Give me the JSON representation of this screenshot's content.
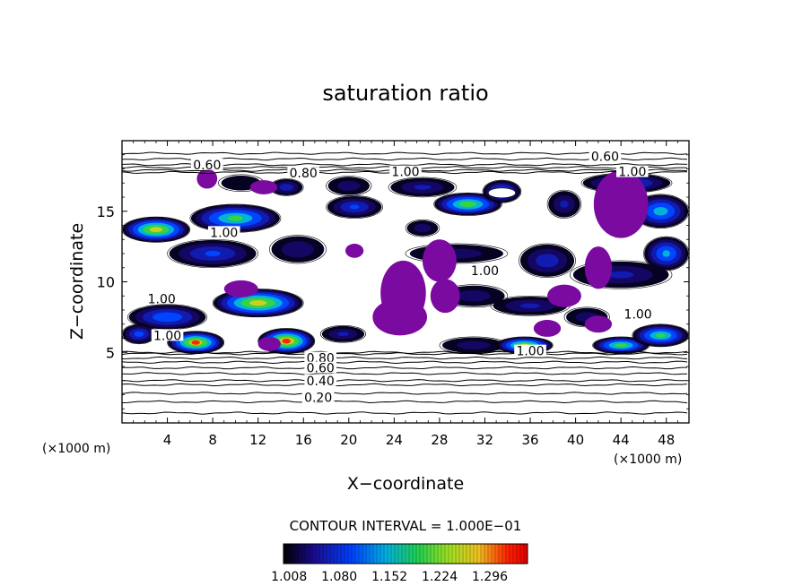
{
  "chart_data": {
    "type": "contour",
    "title": "saturation ratio",
    "xlabel": "X−coordinate",
    "ylabel": "Z−coordinate",
    "x_unit_left": "(×1000 m)",
    "x_unit_right": "(×1000 m)",
    "xlim": [
      0,
      50
    ],
    "ylim": [
      0,
      20
    ],
    "xticks": [
      "4",
      "8",
      "12",
      "16",
      "20",
      "24",
      "28",
      "32",
      "36",
      "40",
      "44",
      "48"
    ],
    "yticks": [
      "5",
      "10",
      "15"
    ],
    "contour_interval_text": "CONTOUR INTERVAL = 1.000E−01",
    "contour_levels_labeled": [
      "0.20",
      "0.40",
      "0.60",
      "0.80",
      "1.00"
    ],
    "colorbar_ticks": [
      "1.008",
      "1.080",
      "1.152",
      "1.224",
      "1.296"
    ],
    "colorbar_range": [
      1.0,
      1.35
    ],
    "inline_labels": [
      {
        "text": "0.60",
        "x": 42.6,
        "y": 18.9
      },
      {
        "text": "0.60",
        "x": 7.5,
        "y": 18.3
      },
      {
        "text": "0.80",
        "x": 16.0,
        "y": 17.7
      },
      {
        "text": "1.00",
        "x": 25.0,
        "y": 17.8
      },
      {
        "text": "1.00",
        "x": 45.0,
        "y": 17.8
      },
      {
        "text": "1.00",
        "x": 9.0,
        "y": 13.5
      },
      {
        "text": "1.00",
        "x": 32.0,
        "y": 10.8
      },
      {
        "text": "1.00",
        "x": 3.5,
        "y": 8.8
      },
      {
        "text": "1.00",
        "x": 4.0,
        "y": 6.2
      },
      {
        "text": "1.00",
        "x": 45.5,
        "y": 7.7
      },
      {
        "text": "1.00",
        "x": 36.0,
        "y": 5.1
      },
      {
        "text": "0.80",
        "x": 17.5,
        "y": 4.6
      },
      {
        "text": "0.60",
        "x": 17.5,
        "y": 3.9
      },
      {
        "text": "0.40",
        "x": 17.5,
        "y": 3.0
      },
      {
        "text": "0.20",
        "x": 17.3,
        "y": 1.8
      }
    ],
    "horizontal_contours_z": [
      0.7,
      1.5,
      2.1,
      2.7,
      3.0,
      3.5,
      3.9,
      4.3,
      4.6,
      4.9,
      5.0,
      17.75,
      17.9,
      18.1,
      18.3,
      18.7,
      19.1
    ],
    "regions": [
      {
        "kind": "supersat",
        "cx": 3.0,
        "cz": 13.7,
        "rx": 3.0,
        "rz": 0.9,
        "peak": 1.3
      },
      {
        "kind": "supersat",
        "cx": 10.0,
        "cz": 14.5,
        "rx": 4.0,
        "rz": 1.0,
        "peak": 1.22
      },
      {
        "kind": "supersat",
        "cx": 8.0,
        "cz": 12.0,
        "rx": 4.0,
        "rz": 1.0,
        "peak": 1.1
      },
      {
        "kind": "supersat",
        "cx": 15.5,
        "cz": 12.3,
        "rx": 2.5,
        "rz": 1.0,
        "peak": 1.05
      },
      {
        "kind": "supersat",
        "cx": 12.0,
        "cz": 8.5,
        "rx": 4.0,
        "rz": 1.0,
        "peak": 1.3
      },
      {
        "kind": "supersat",
        "cx": 4.0,
        "cz": 7.5,
        "rx": 3.5,
        "rz": 0.9,
        "peak": 1.14
      },
      {
        "kind": "supersat",
        "cx": 6.5,
        "cz": 5.7,
        "rx": 2.5,
        "rz": 0.8,
        "peak": 1.32
      },
      {
        "kind": "supersat",
        "cx": 14.5,
        "cz": 5.8,
        "rx": 2.5,
        "rz": 0.9,
        "peak": 1.34
      },
      {
        "kind": "supersat",
        "cx": 1.5,
        "cz": 6.3,
        "rx": 1.5,
        "rz": 0.7,
        "peak": 1.12
      },
      {
        "kind": "supersat",
        "cx": 10.5,
        "cz": 17.0,
        "rx": 2.0,
        "rz": 0.6,
        "peak": 1.02
      },
      {
        "kind": "supersat",
        "cx": 14.5,
        "cz": 16.7,
        "rx": 1.5,
        "rz": 0.6,
        "peak": 1.08
      },
      {
        "kind": "supersat",
        "cx": 20.0,
        "cz": 16.8,
        "rx": 2.0,
        "rz": 0.7,
        "peak": 1.04
      },
      {
        "kind": "supersat",
        "cx": 20.5,
        "cz": 15.3,
        "rx": 2.5,
        "rz": 0.8,
        "peak": 1.1
      },
      {
        "kind": "supersat",
        "cx": 26.5,
        "cz": 16.7,
        "rx": 3.0,
        "rz": 0.7,
        "peak": 1.06
      },
      {
        "kind": "supersat",
        "cx": 30.5,
        "cz": 15.5,
        "rx": 3.0,
        "rz": 0.8,
        "peak": 1.25
      },
      {
        "kind": "supersat",
        "cx": 33.5,
        "cz": 16.4,
        "rx": 1.7,
        "rz": 0.8,
        "peak": 1.15
      },
      {
        "kind": "supersat",
        "cx": 26.5,
        "cz": 13.8,
        "rx": 1.5,
        "rz": 0.6,
        "peak": 1.04
      },
      {
        "kind": "supersat",
        "cx": 39.0,
        "cz": 15.5,
        "rx": 1.5,
        "rz": 1.0,
        "peak": 1.06
      },
      {
        "kind": "supersat",
        "cx": 44.5,
        "cz": 17.0,
        "rx": 4.0,
        "rz": 0.7,
        "peak": 1.12
      },
      {
        "kind": "supersat",
        "cx": 47.5,
        "cz": 15.0,
        "rx": 2.5,
        "rz": 1.2,
        "peak": 1.18
      },
      {
        "kind": "supersat",
        "cx": 48.0,
        "cz": 12.0,
        "rx": 2.0,
        "rz": 1.2,
        "peak": 1.16
      },
      {
        "kind": "supersat",
        "cx": 29.5,
        "cz": 12.0,
        "rx": 4.5,
        "rz": 0.7,
        "peak": 1.04
      },
      {
        "kind": "supersat",
        "cx": 37.5,
        "cz": 11.5,
        "rx": 2.5,
        "rz": 1.2,
        "peak": 1.08
      },
      {
        "kind": "supersat",
        "cx": 44.0,
        "cz": 10.5,
        "rx": 4.5,
        "rz": 1.0,
        "peak": 1.06
      },
      {
        "kind": "supersat",
        "cx": 36.0,
        "cz": 8.3,
        "rx": 3.5,
        "rz": 0.7,
        "peak": 1.06
      },
      {
        "kind": "supersat",
        "cx": 31.0,
        "cz": 9.0,
        "rx": 3.0,
        "rz": 0.8,
        "peak": 1.04
      },
      {
        "kind": "supersat",
        "cx": 19.5,
        "cz": 6.3,
        "rx": 2.0,
        "rz": 0.6,
        "peak": 1.06
      },
      {
        "kind": "supersat",
        "cx": 31.0,
        "cz": 5.5,
        "rx": 3.0,
        "rz": 0.6,
        "peak": 1.04
      },
      {
        "kind": "supersat",
        "cx": 35.5,
        "cz": 5.5,
        "rx": 2.5,
        "rz": 0.6,
        "peak": 1.28
      },
      {
        "kind": "supersat",
        "cx": 44.0,
        "cz": 5.5,
        "rx": 2.5,
        "rz": 0.6,
        "peak": 1.24
      },
      {
        "kind": "supersat",
        "cx": 47.5,
        "cz": 6.2,
        "rx": 2.5,
        "rz": 0.8,
        "peak": 1.22
      },
      {
        "kind": "supersat",
        "cx": 41.0,
        "cz": 7.5,
        "rx": 2.0,
        "rz": 0.7,
        "peak": 1.04
      },
      {
        "kind": "saturated",
        "cx": 7.5,
        "cz": 17.3,
        "rx": 0.9,
        "rz": 0.7
      },
      {
        "kind": "saturated",
        "cx": 12.5,
        "cz": 16.7,
        "rx": 1.2,
        "rz": 0.5
      },
      {
        "kind": "saturated",
        "cx": 20.5,
        "cz": 12.2,
        "rx": 0.8,
        "rz": 0.5
      },
      {
        "kind": "saturated",
        "cx": 24.8,
        "cz": 9.2,
        "rx": 2.0,
        "rz": 2.3
      },
      {
        "kind": "saturated",
        "cx": 24.5,
        "cz": 7.5,
        "rx": 2.4,
        "rz": 1.3
      },
      {
        "kind": "saturated",
        "cx": 28.0,
        "cz": 11.5,
        "rx": 1.5,
        "rz": 1.5
      },
      {
        "kind": "saturated",
        "cx": 28.5,
        "cz": 9.0,
        "rx": 1.3,
        "rz": 1.2
      },
      {
        "kind": "saturated",
        "cx": 44.0,
        "cz": 15.5,
        "rx": 2.4,
        "rz": 2.4
      },
      {
        "kind": "saturated",
        "cx": 42.0,
        "cz": 11.0,
        "rx": 1.2,
        "rz": 1.5
      },
      {
        "kind": "saturated",
        "cx": 39.0,
        "cz": 9.0,
        "rx": 1.5,
        "rz": 0.8
      },
      {
        "kind": "saturated",
        "cx": 42.0,
        "cz": 7.0,
        "rx": 1.2,
        "rz": 0.6
      },
      {
        "kind": "saturated",
        "cx": 10.5,
        "cz": 9.5,
        "rx": 1.5,
        "rz": 0.6
      },
      {
        "kind": "saturated",
        "cx": 13.0,
        "cz": 5.6,
        "rx": 1.0,
        "rz": 0.5
      },
      {
        "kind": "saturated",
        "cx": 37.5,
        "cz": 6.7,
        "rx": 1.2,
        "rz": 0.6
      }
    ],
    "white_holes": [
      {
        "cx": 33.5,
        "cz": 16.3,
        "rx": 1.2,
        "rz": 0.35
      }
    ],
    "saturated_color": "#7a0aa0",
    "grid": false
  }
}
